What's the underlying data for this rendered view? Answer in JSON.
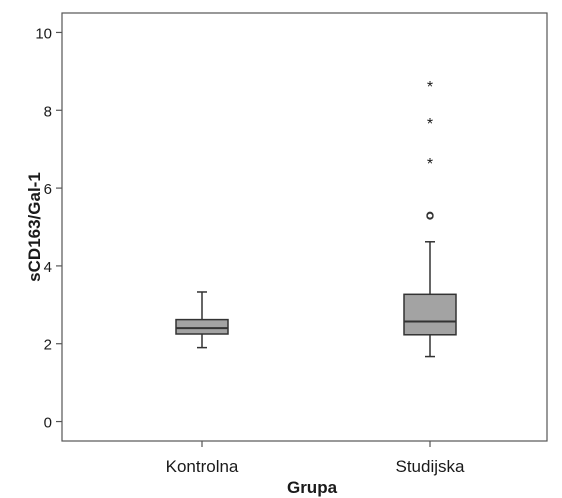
{
  "chart_data": {
    "type": "boxplot",
    "xlabel": "Grupa",
    "ylabel": "sCD163/Gal-1",
    "ylim": [
      -0.5,
      10.5
    ],
    "yticks": [
      0,
      2,
      4,
      6,
      8,
      10
    ],
    "categories": [
      "Kontrolna",
      "Studijska"
    ],
    "boxes": [
      {
        "category": "Kontrolna",
        "whisker_low": 1.9,
        "q1": 2.25,
        "median": 2.4,
        "q3": 2.62,
        "whisker_high": 3.33,
        "outliers": [],
        "extremes": []
      },
      {
        "category": "Studijska",
        "whisker_low": 1.67,
        "q1": 2.23,
        "median": 2.57,
        "q3": 3.27,
        "whisker_high": 4.62,
        "outliers": [
          5.28,
          5.3
        ],
        "extremes": [
          6.72,
          7.75,
          8.7
        ]
      }
    ],
    "outlier_marker": "o",
    "extreme_marker": "*",
    "box_color": "#a3a3a3",
    "grid": false,
    "legend": "none"
  }
}
